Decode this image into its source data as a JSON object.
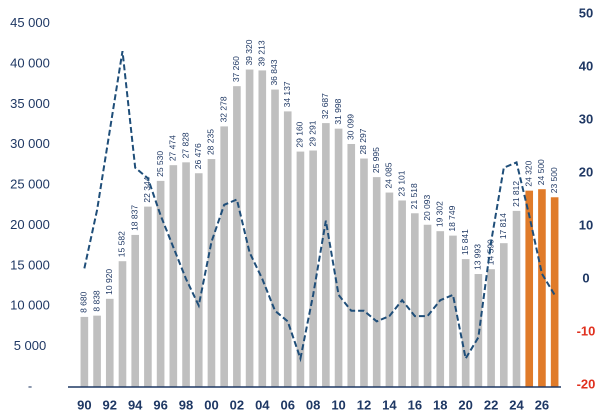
{
  "chart_data": {
    "type": "bar",
    "categories": [
      "90",
      null,
      "92",
      null,
      "94",
      null,
      "96",
      null,
      "98",
      null,
      "00",
      null,
      "02",
      null,
      "04",
      null,
      "06",
      null,
      "08",
      null,
      "10",
      null,
      "12",
      null,
      "14",
      null,
      "16",
      null,
      "18",
      null,
      "20",
      null,
      "22",
      null,
      "24",
      null,
      "26",
      null
    ],
    "series": [
      {
        "type": "bar",
        "colors": [
          "#bfbfbf",
          "#bfbfbf",
          "#bfbfbf",
          "#bfbfbf",
          "#bfbfbf",
          "#bfbfbf",
          "#bfbfbf",
          "#bfbfbf",
          "#bfbfbf",
          "#bfbfbf",
          "#bfbfbf",
          "#bfbfbf",
          "#bfbfbf",
          "#bfbfbf",
          "#bfbfbf",
          "#bfbfbf",
          "#bfbfbf",
          "#bfbfbf",
          "#bfbfbf",
          "#bfbfbf",
          "#bfbfbf",
          "#bfbfbf",
          "#bfbfbf",
          "#bfbfbf",
          "#bfbfbf",
          "#bfbfbf",
          "#bfbfbf",
          "#bfbfbf",
          "#bfbfbf",
          "#bfbfbf",
          "#bfbfbf",
          "#bfbfbf",
          "#bfbfbf",
          "#bfbfbf",
          "#bfbfbf",
          "#e07b2a",
          "#e07b2a",
          "#e07b2a"
        ],
        "values": [
          8680,
          8838,
          10920,
          15582,
          18837,
          22344,
          25530,
          27474,
          27828,
          26476,
          28235,
          32278,
          37260,
          39320,
          39213,
          36843,
          34137,
          29160,
          29291,
          32687,
          31998,
          30099,
          28297,
          25995,
          24085,
          23101,
          21518,
          20093,
          19302,
          18749,
          15841,
          13993,
          14590,
          17814,
          21812,
          24320,
          24500,
          23500
        ],
        "value_labels": [
          "8 680",
          "8 838",
          "10 920",
          "15 582",
          "18 837",
          "22 344",
          "25 530",
          "27 474",
          "27 828",
          "26 476",
          "28 235",
          "32 278",
          "37 260",
          "39 320",
          "39 213",
          "36 843",
          "34 137",
          "29 160",
          "29 291",
          "32 687",
          "31 998",
          "30 099",
          "28 297",
          "25 995",
          "24 085",
          "23 101",
          "21 518",
          "20 093",
          "19 302",
          "18 749",
          "15 841",
          "13 993",
          "14 590",
          "17 814",
          "21 812",
          "24 320",
          "24 500",
          "23 500"
        ]
      },
      {
        "type": "line",
        "axis": "y2",
        "color": "#1f4e79",
        "dashed": true,
        "values": [
          2,
          13,
          28,
          43,
          21,
          19,
          12,
          6,
          0,
          -5,
          7,
          14,
          15,
          5,
          0,
          -6,
          -8,
          -15,
          -3,
          11,
          -3,
          -6,
          -6,
          -8,
          -7,
          -4,
          -7,
          -7,
          -4,
          -3,
          -15,
          -11,
          7,
          21,
          22,
          12,
          1,
          -3
        ]
      }
    ],
    "ylim": [
      0,
      46200
    ],
    "yticks": [
      {
        "value": 0,
        "label": "-"
      },
      {
        "value": 5000,
        "label": "5 000"
      },
      {
        "value": 10000,
        "label": "10 000"
      },
      {
        "value": 15000,
        "label": "15 000"
      },
      {
        "value": 20000,
        "label": "20 000"
      },
      {
        "value": 25000,
        "label": "25 000"
      },
      {
        "value": 30000,
        "label": "30 000"
      },
      {
        "value": 35000,
        "label": "35 000"
      },
      {
        "value": 40000,
        "label": "40 000"
      },
      {
        "value": 45000,
        "label": "45 000"
      }
    ],
    "y2lim": [
      -20,
      50
    ],
    "y2ticks": [
      -20,
      -10,
      0,
      10,
      20,
      30,
      40,
      50
    ],
    "axis_color": "#1f3864",
    "negative_tick_color": "#e0301e"
  }
}
